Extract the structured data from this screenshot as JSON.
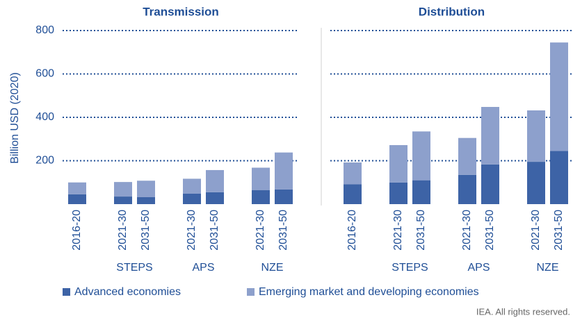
{
  "chart_data": [
    {
      "type": "bar",
      "stacked": true,
      "title": "Transmission",
      "y_label": "Billion USD (2020)",
      "categories": [
        "2016-20",
        "2021-30",
        "2031-50",
        "2021-30",
        "2031-50",
        "2021-30",
        "2031-50"
      ],
      "groups": [
        null,
        "STEPS",
        "STEPS",
        "APS",
        "APS",
        "NZE",
        "NZE"
      ],
      "series": [
        {
          "name": "Advanced economies",
          "color": "#3d63a6",
          "values": [
            45,
            35,
            32,
            48,
            55,
            65,
            68
          ]
        },
        {
          "name": "Emerging market and developing economies",
          "color": "#8da0cc",
          "values": [
            55,
            67,
            76,
            69,
            102,
            103,
            170
          ]
        }
      ],
      "ylim": [
        0,
        800
      ],
      "yticks": [
        200,
        400,
        600,
        800
      ],
      "grid": true
    },
    {
      "type": "bar",
      "stacked": true,
      "title": "Distribution",
      "categories": [
        "2016-20",
        "2021-30",
        "2031-50",
        "2021-30",
        "2031-50",
        "2021-30",
        "2031-50"
      ],
      "groups": [
        null,
        "STEPS",
        "STEPS",
        "APS",
        "APS",
        "NZE",
        "NZE"
      ],
      "series": [
        {
          "color": "#3d63a6",
          "values": [
            92,
            100,
            110,
            135,
            183,
            195,
            245
          ]
        },
        {
          "color": "#8da0cc",
          "values": [
            100,
            172,
            225,
            170,
            265,
            237,
            500
          ]
        }
      ],
      "ylim": [
        0,
        800
      ],
      "yticks": [
        200,
        400,
        600,
        800
      ],
      "grid": true
    }
  ],
  "note": "IEA. All rights reserved."
}
